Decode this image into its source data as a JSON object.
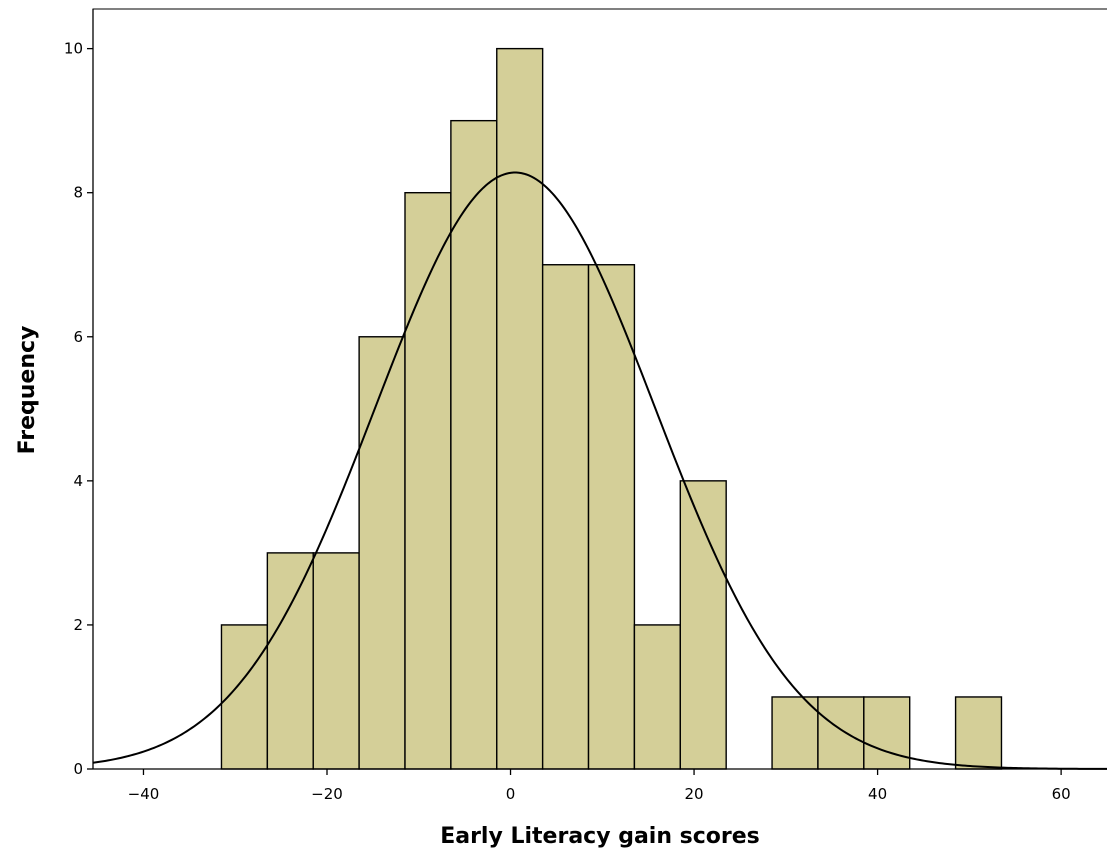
{
  "chart_data": {
    "type": "bar",
    "subtype": "histogram",
    "xlabel": "Early Literacy gain scores",
    "ylabel": "Frequency",
    "xlim": [
      -45.5,
      65
    ],
    "ylim": [
      0,
      10.55
    ],
    "x_ticks": [
      -40,
      -20,
      0,
      20,
      40,
      60
    ],
    "y_ticks": [
      0,
      2,
      4,
      6,
      8,
      10
    ],
    "bin_width": 5,
    "bins": [
      {
        "start": -31.5,
        "end": -26.5,
        "count": 2
      },
      {
        "start": -26.5,
        "end": -21.5,
        "count": 3
      },
      {
        "start": -21.5,
        "end": -16.5,
        "count": 3
      },
      {
        "start": -16.5,
        "end": -11.5,
        "count": 6
      },
      {
        "start": -11.5,
        "end": -6.5,
        "count": 8
      },
      {
        "start": -6.5,
        "end": -1.5,
        "count": 9
      },
      {
        "start": -1.5,
        "end": 3.5,
        "count": 10
      },
      {
        "start": 3.5,
        "end": 8.5,
        "count": 7
      },
      {
        "start": 8.5,
        "end": 13.5,
        "count": 7
      },
      {
        "start": 13.5,
        "end": 18.5,
        "count": 2
      },
      {
        "start": 18.5,
        "end": 23.5,
        "count": 4
      },
      {
        "start": 23.5,
        "end": 28.5,
        "count": 0
      },
      {
        "start": 28.5,
        "end": 33.5,
        "count": 1
      },
      {
        "start": 33.5,
        "end": 38.5,
        "count": 1
      },
      {
        "start": 38.5,
        "end": 43.5,
        "count": 1
      },
      {
        "start": 43.5,
        "end": 48.5,
        "count": 0
      },
      {
        "start": 48.5,
        "end": 53.5,
        "count": 1
      }
    ],
    "normal_curve": {
      "mean": 0.5,
      "sd": 15.23,
      "peak": 8.28
    },
    "bar_color": "#d4cf98",
    "edge_color": "#000000",
    "grid": false,
    "legend": "none"
  }
}
